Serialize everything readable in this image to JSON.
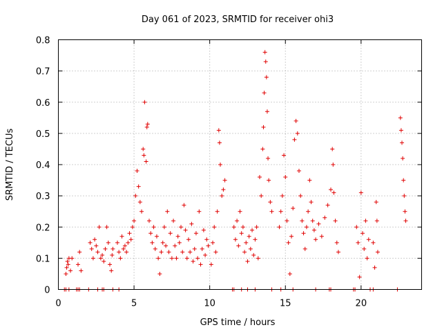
{
  "chart_data": {
    "type": "scatter",
    "title": "Day 061 of 2023, SRMTID for receiver ohi3",
    "xlabel": "GPS time / hours",
    "ylabel": "SRMTID / TECUs",
    "xlim": [
      0,
      24
    ],
    "ylim": [
      0,
      0.8
    ],
    "xticks": [
      0,
      5,
      10,
      15,
      20
    ],
    "xtick_labels": [
      "0",
      "5",
      "10",
      "15",
      "20"
    ],
    "yticks": [
      0,
      0.1,
      0.2,
      0.3,
      0.4,
      0.5,
      0.6,
      0.7,
      0.8
    ],
    "ytick_labels": [
      "0",
      "0.1",
      "0.2",
      "0.3",
      "0.4",
      "0.5",
      "0.6",
      "0.7",
      "0.8"
    ],
    "grid": true,
    "marker": "plus",
    "color": "#e00000",
    "series": [
      {
        "name": "SRMTID",
        "points": [
          [
            0.5,
            0.05
          ],
          [
            0.55,
            0.07
          ],
          [
            0.6,
            0.09
          ],
          [
            0.7,
            0.1
          ],
          [
            0.8,
            0.06
          ],
          [
            0.9,
            0.1
          ],
          [
            0.65,
            0.08
          ],
          [
            1.3,
            0.08
          ],
          [
            1.4,
            0.12
          ],
          [
            1.5,
            0.06
          ],
          [
            2.1,
            0.15
          ],
          [
            2.2,
            0.13
          ],
          [
            2.3,
            0.1
          ],
          [
            2.4,
            0.16
          ],
          [
            2.5,
            0.14
          ],
          [
            2.6,
            0.12
          ],
          [
            2.7,
            0.2
          ],
          [
            2.8,
            0.1
          ],
          [
            2.9,
            0.11
          ],
          [
            3.0,
            0.09
          ],
          [
            3.1,
            0.13
          ],
          [
            3.2,
            0.2
          ],
          [
            3.3,
            0.15
          ],
          [
            3.4,
            0.08
          ],
          [
            3.5,
            0.06
          ],
          [
            3.55,
            0.11
          ],
          [
            3.6,
            0.13
          ],
          [
            3.9,
            0.15
          ],
          [
            4.0,
            0.12
          ],
          [
            4.1,
            0.1
          ],
          [
            4.2,
            0.17
          ],
          [
            4.3,
            0.13
          ],
          [
            4.4,
            0.14
          ],
          [
            4.5,
            0.12
          ],
          [
            4.6,
            0.15
          ],
          [
            4.7,
            0.18
          ],
          [
            4.8,
            0.16
          ],
          [
            4.9,
            0.2
          ],
          [
            5.0,
            0.22
          ],
          [
            5.1,
            0.3
          ],
          [
            5.2,
            0.38
          ],
          [
            5.3,
            0.33
          ],
          [
            5.4,
            0.28
          ],
          [
            5.5,
            0.25
          ],
          [
            5.6,
            0.45
          ],
          [
            5.65,
            0.43
          ],
          [
            5.7,
            0.6
          ],
          [
            5.8,
            0.41
          ],
          [
            5.85,
            0.52
          ],
          [
            5.9,
            0.53
          ],
          [
            6.0,
            0.22
          ],
          [
            6.1,
            0.18
          ],
          [
            6.2,
            0.15
          ],
          [
            6.3,
            0.2
          ],
          [
            6.4,
            0.13
          ],
          [
            6.5,
            0.17
          ],
          [
            6.6,
            0.1
          ],
          [
            6.7,
            0.05
          ],
          [
            6.8,
            0.12
          ],
          [
            6.9,
            0.15
          ],
          [
            7.0,
            0.2
          ],
          [
            7.1,
            0.14
          ],
          [
            7.2,
            0.25
          ],
          [
            7.3,
            0.12
          ],
          [
            7.4,
            0.18
          ],
          [
            7.5,
            0.1
          ],
          [
            7.6,
            0.22
          ],
          [
            7.7,
            0.14
          ],
          [
            7.8,
            0.1
          ],
          [
            7.9,
            0.17
          ],
          [
            8.0,
            0.15
          ],
          [
            8.1,
            0.2
          ],
          [
            8.2,
            0.12
          ],
          [
            8.3,
            0.27
          ],
          [
            8.4,
            0.19
          ],
          [
            8.5,
            0.1
          ],
          [
            8.6,
            0.16
          ],
          [
            8.7,
            0.12
          ],
          [
            8.8,
            0.21
          ],
          [
            8.9,
            0.09
          ],
          [
            9.0,
            0.13
          ],
          [
            9.1,
            0.18
          ],
          [
            9.2,
            0.1
          ],
          [
            9.3,
            0.25
          ],
          [
            9.4,
            0.08
          ],
          [
            9.5,
            0.13
          ],
          [
            9.6,
            0.19
          ],
          [
            9.7,
            0.11
          ],
          [
            9.8,
            0.16
          ],
          [
            9.9,
            0.14
          ],
          [
            10.1,
            0.08
          ],
          [
            10.2,
            0.15
          ],
          [
            10.3,
            0.2
          ],
          [
            10.4,
            0.12
          ],
          [
            10.5,
            0.25
          ],
          [
            10.6,
            0.51
          ],
          [
            10.65,
            0.47
          ],
          [
            10.7,
            0.4
          ],
          [
            10.8,
            0.3
          ],
          [
            10.9,
            0.32
          ],
          [
            11.0,
            0.35
          ],
          [
            11.6,
            0.2
          ],
          [
            11.7,
            0.16
          ],
          [
            11.8,
            0.22
          ],
          [
            11.9,
            0.14
          ],
          [
            12.0,
            0.25
          ],
          [
            12.1,
            0.18
          ],
          [
            12.2,
            0.2
          ],
          [
            12.3,
            0.12
          ],
          [
            12.4,
            0.15
          ],
          [
            12.5,
            0.09
          ],
          [
            12.6,
            0.17
          ],
          [
            12.7,
            0.13
          ],
          [
            12.8,
            0.19
          ],
          [
            12.9,
            0.11
          ],
          [
            13.0,
            0.16
          ],
          [
            13.1,
            0.2
          ],
          [
            13.2,
            0.1
          ],
          [
            13.3,
            0.36
          ],
          [
            13.4,
            0.3
          ],
          [
            13.5,
            0.45
          ],
          [
            13.55,
            0.52
          ],
          [
            13.6,
            0.63
          ],
          [
            13.65,
            0.76
          ],
          [
            13.7,
            0.73
          ],
          [
            13.75,
            0.68
          ],
          [
            13.8,
            0.57
          ],
          [
            13.85,
            0.42
          ],
          [
            13.9,
            0.35
          ],
          [
            14.0,
            0.28
          ],
          [
            14.1,
            0.25
          ],
          [
            14.6,
            0.2
          ],
          [
            14.7,
            0.25
          ],
          [
            14.8,
            0.3
          ],
          [
            14.9,
            0.43
          ],
          [
            15.0,
            0.36
          ],
          [
            15.1,
            0.22
          ],
          [
            15.2,
            0.15
          ],
          [
            15.3,
            0.05
          ],
          [
            15.4,
            0.17
          ],
          [
            15.5,
            0.26
          ],
          [
            15.6,
            0.48
          ],
          [
            15.7,
            0.54
          ],
          [
            15.8,
            0.5
          ],
          [
            15.9,
            0.38
          ],
          [
            16.0,
            0.3
          ],
          [
            16.1,
            0.22
          ],
          [
            16.2,
            0.18
          ],
          [
            16.3,
            0.13
          ],
          [
            16.4,
            0.2
          ],
          [
            16.5,
            0.25
          ],
          [
            16.6,
            0.35
          ],
          [
            16.7,
            0.28
          ],
          [
            16.8,
            0.22
          ],
          [
            16.9,
            0.19
          ],
          [
            17.0,
            0.16
          ],
          [
            17.2,
            0.21
          ],
          [
            17.4,
            0.17
          ],
          [
            17.6,
            0.23
          ],
          [
            17.8,
            0.27
          ],
          [
            18.0,
            0.32
          ],
          [
            18.1,
            0.45
          ],
          [
            18.15,
            0.4
          ],
          [
            18.2,
            0.31
          ],
          [
            18.3,
            0.22
          ],
          [
            18.4,
            0.15
          ],
          [
            18.5,
            0.12
          ],
          [
            19.7,
            0.2
          ],
          [
            19.8,
            0.15
          ],
          [
            19.9,
            0.04
          ],
          [
            20.0,
            0.31
          ],
          [
            20.1,
            0.18
          ],
          [
            20.2,
            0.13
          ],
          [
            20.3,
            0.22
          ],
          [
            20.4,
            0.1
          ],
          [
            20.5,
            0.16
          ],
          [
            20.8,
            0.15
          ],
          [
            20.9,
            0.07
          ],
          [
            21.0,
            0.28
          ],
          [
            21.05,
            0.22
          ],
          [
            21.1,
            0.12
          ],
          [
            22.6,
            0.55
          ],
          [
            22.65,
            0.51
          ],
          [
            22.7,
            0.47
          ],
          [
            22.75,
            0.42
          ],
          [
            22.8,
            0.35
          ],
          [
            22.85,
            0.3
          ],
          [
            22.9,
            0.25
          ],
          [
            22.95,
            0.22
          ]
        ],
        "zero_points": [
          0.4,
          0.5,
          0.7,
          1.2,
          1.3,
          1.4,
          2.0,
          2.6,
          2.9,
          3.0,
          3.6,
          4.0,
          11.5,
          11.6,
          12.1,
          12.5,
          13.0,
          14.1,
          14.7,
          15.5,
          17.0,
          17.9,
          18.0,
          19.5,
          19.6,
          20.6,
          20.8,
          22.4
        ]
      }
    ]
  }
}
